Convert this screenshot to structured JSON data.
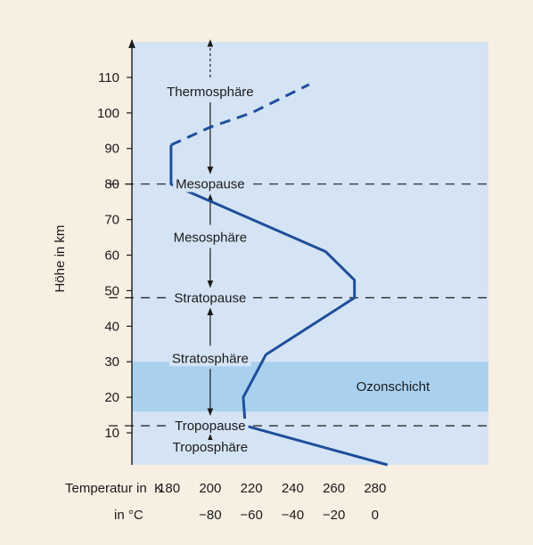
{
  "chart_data": {
    "type": "line",
    "ylabel": "Höhe in km",
    "x_caption_K": "Temperatur in  K",
    "x_caption_C": "in °C",
    "x_ticks_K": [
      "180",
      "200",
      "220",
      "240",
      "260",
      "280"
    ],
    "x_ticks_C": [
      "−80",
      "−60",
      "−40",
      "−20",
      "0"
    ],
    "y_ticks": [
      "10",
      "20",
      "30",
      "40",
      "50",
      "60",
      "70",
      "80",
      "90",
      "100",
      "110"
    ],
    "xlim": [
      162,
      335
    ],
    "ylim": [
      1,
      120
    ],
    "series": [
      {
        "style": "solid",
        "color": "#1f4e9a",
        "points": [
          [
            286,
            1
          ],
          [
            217,
            12
          ],
          [
            216,
            20
          ],
          [
            227,
            32
          ],
          [
            270,
            48
          ],
          [
            270,
            53
          ],
          [
            256,
            61
          ],
          [
            181,
            80
          ],
          [
            181,
            91
          ]
        ]
      },
      {
        "style": "dashed",
        "color": "#1f4e9a",
        "points": [
          [
            181,
            91
          ],
          [
            200,
            96
          ],
          [
            220,
            100
          ],
          [
            248,
            108
          ]
        ]
      }
    ],
    "boundaries": [
      {
        "label": "Tropopause",
        "altitude": 12
      },
      {
        "label": "Stratopause",
        "altitude": 48
      },
      {
        "label": "Mesopause",
        "altitude": 80
      }
    ],
    "layers": [
      {
        "label": "Troposphäre",
        "altitude": 6
      },
      {
        "label": "Stratosphäre",
        "altitude": 31
      },
      {
        "label": "Mesosphäre",
        "altitude": 65
      },
      {
        "label": "Thermosphäre",
        "altitude": 106
      }
    ],
    "ozone": {
      "label": "Ozonschicht",
      "from": 16,
      "to": 30
    },
    "colors": {
      "background": "#f8efe3",
      "plot_area": "#d4e4f5",
      "ozone_band": "#a9d1ef",
      "curve": "#1f4e9a",
      "axis": "#1a1a1a"
    }
  }
}
